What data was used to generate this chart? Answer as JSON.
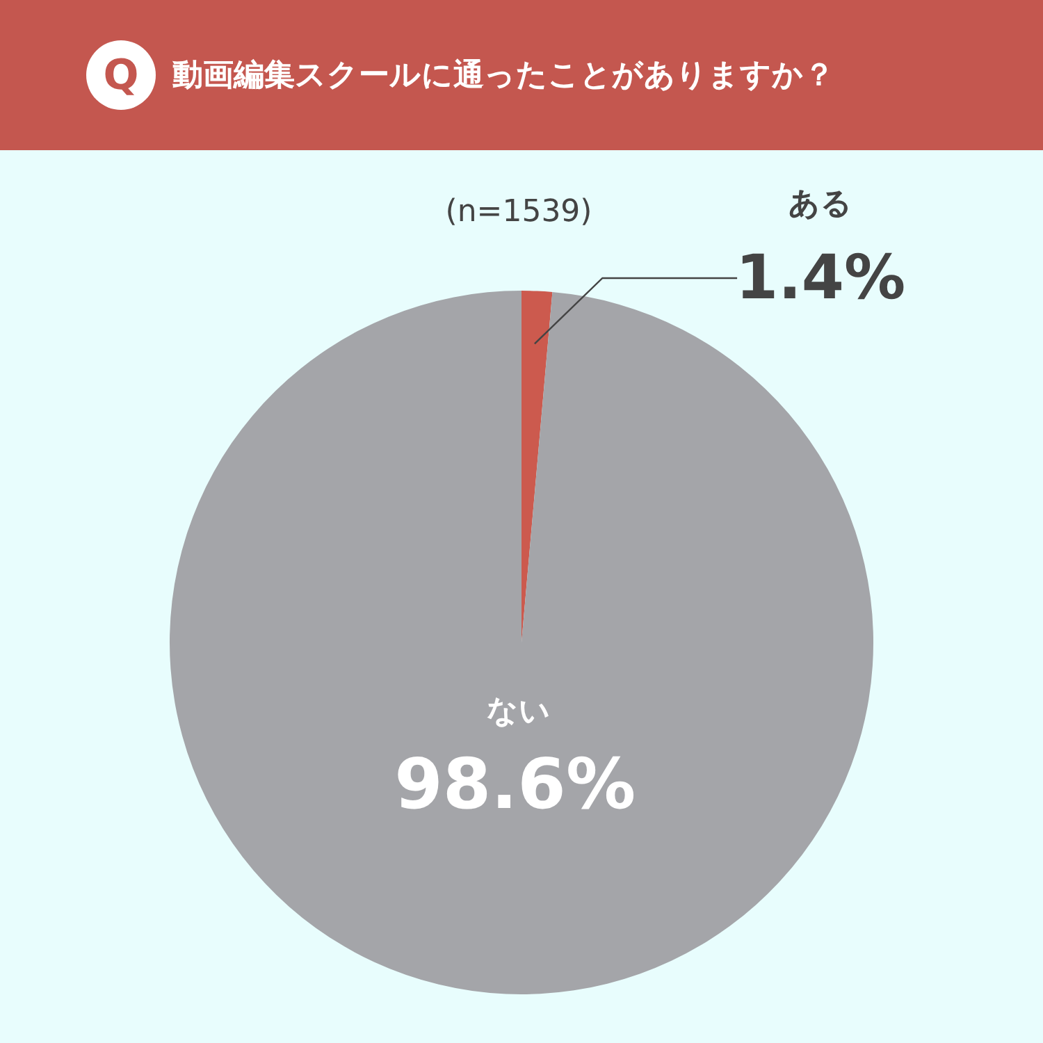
{
  "chart_data": {
    "type": "pie",
    "title": "動画編集スクールに通ったことがありますか？",
    "subtitle": "(n=1539)",
    "annotations": [
      "Q"
    ],
    "categories": [
      "ある",
      "ない"
    ],
    "values": [
      1.4,
      98.6
    ],
    "colors": [
      "#cc5a4e",
      "#a4a5a9"
    ],
    "value_labels": [
      "1.4%",
      "98.6%"
    ],
    "legend": false
  }
}
